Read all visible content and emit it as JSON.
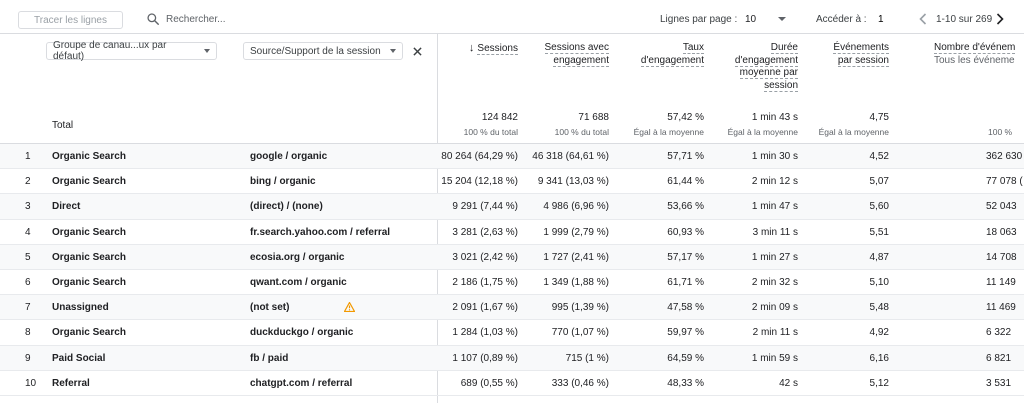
{
  "toolbar": {
    "plot_rows_label": "Tracer les lignes",
    "search_placeholder": "Rechercher...",
    "rows_per_page_label": "Lignes par page :",
    "rows_per_page_value": "10",
    "goto_label": "Accéder à :",
    "goto_value": "1",
    "page_range": "1-10 sur 269"
  },
  "dimensions": {
    "primary": "Groupe de canau...ux par défaut)",
    "secondary": "Source/Support de la session"
  },
  "columns": {
    "sessions": "Sessions",
    "engaged_sessions_1": "Sessions avec",
    "engaged_sessions_2": "engagement",
    "engagement_rate_1": "Taux",
    "engagement_rate_2": "d'engagement",
    "avg_duration_1": "Durée",
    "avg_duration_2": "d'engagement",
    "avg_duration_3": "moyenne par",
    "avg_duration_4": "session",
    "events_1": "Événements",
    "events_2": "par session",
    "event_count_1": "Nombre d'événem",
    "event_count_2": "Tous les événeme"
  },
  "totals": {
    "label": "Total",
    "sessions": "124 842",
    "sessions_sub": "100 % du total",
    "engaged": "71 688",
    "engaged_sub": "100 % du total",
    "rate": "57,42 %",
    "rate_sub": "Égal à la moyenne",
    "duration": "1 min 43 s",
    "duration_sub": "Égal à la moyenne",
    "events": "4,75",
    "events_sub": "Égal à la moyenne",
    "event_count_sub": "100 %"
  },
  "rows": [
    {
      "idx": "1",
      "channel": "Organic Search",
      "source": "google / organic",
      "sessions": "80 264 (64,29 %)",
      "engaged": "46 318 (64,61 %)",
      "rate": "57,71 %",
      "duration": "1 min 30 s",
      "events": "4,52",
      "count": "362 630"
    },
    {
      "idx": "2",
      "channel": "Organic Search",
      "source": "bing / organic",
      "sessions": "15 204 (12,18 %)",
      "engaged": "9 341 (13,03 %)",
      "rate": "61,44 %",
      "duration": "2 min 12 s",
      "events": "5,07",
      "count": "77 078 ("
    },
    {
      "idx": "3",
      "channel": "Direct",
      "source": "(direct) / (none)",
      "sessions": "9 291 (7,44 %)",
      "engaged": "4 986 (6,96 %)",
      "rate": "53,66 %",
      "duration": "1 min 47 s",
      "events": "5,60",
      "count": "52 043"
    },
    {
      "idx": "4",
      "channel": "Organic Search",
      "source": "fr.search.yahoo.com / referral",
      "sessions": "3 281 (2,63 %)",
      "engaged": "1 999 (2,79 %)",
      "rate": "60,93 %",
      "duration": "3 min 11 s",
      "events": "5,51",
      "count": "18 063"
    },
    {
      "idx": "5",
      "channel": "Organic Search",
      "source": "ecosia.org / organic",
      "sessions": "3 021 (2,42 %)",
      "engaged": "1 727 (2,41 %)",
      "rate": "57,17 %",
      "duration": "1 min 27 s",
      "events": "4,87",
      "count": "14 708"
    },
    {
      "idx": "6",
      "channel": "Organic Search",
      "source": "qwant.com / organic",
      "sessions": "2 186 (1,75 %)",
      "engaged": "1 349 (1,88 %)",
      "rate": "61,71 %",
      "duration": "2 min 32 s",
      "events": "5,10",
      "count": "11 149"
    },
    {
      "idx": "7",
      "channel": "Unassigned",
      "source": "(not set)",
      "warning": true,
      "sessions": "2 091 (1,67 %)",
      "engaged": "995 (1,39 %)",
      "rate": "47,58 %",
      "duration": "2 min 09 s",
      "events": "5,48",
      "count": "11 469"
    },
    {
      "idx": "8",
      "channel": "Organic Search",
      "source": "duckduckgo / organic",
      "sessions": "1 284 (1,03 %)",
      "engaged": "770 (1,07 %)",
      "rate": "59,97 %",
      "duration": "2 min 11 s",
      "events": "4,92",
      "count": "6 322"
    },
    {
      "idx": "9",
      "channel": "Paid Social",
      "source": "fb / paid",
      "sessions": "1 107 (0,89 %)",
      "engaged": "715 (1 %)",
      "rate": "64,59 %",
      "duration": "1 min 59 s",
      "events": "6,16",
      "count": "6 821"
    },
    {
      "idx": "10",
      "channel": "Referral",
      "source": "chatgpt.com / referral",
      "sessions": "689 (0,55 %)",
      "engaged": "333 (0,46 %)",
      "rate": "48,33 %",
      "duration": "42 s",
      "events": "5,12",
      "count": "3 531"
    }
  ],
  "icons": {
    "search": "search-icon",
    "prev": "chevron-left-icon",
    "next": "chevron-right-icon",
    "close": "close-icon",
    "sort": "arrow-down-icon",
    "warning": "warning-icon"
  },
  "colors": {
    "warning": "#f29900",
    "divider": "#dadce0"
  }
}
